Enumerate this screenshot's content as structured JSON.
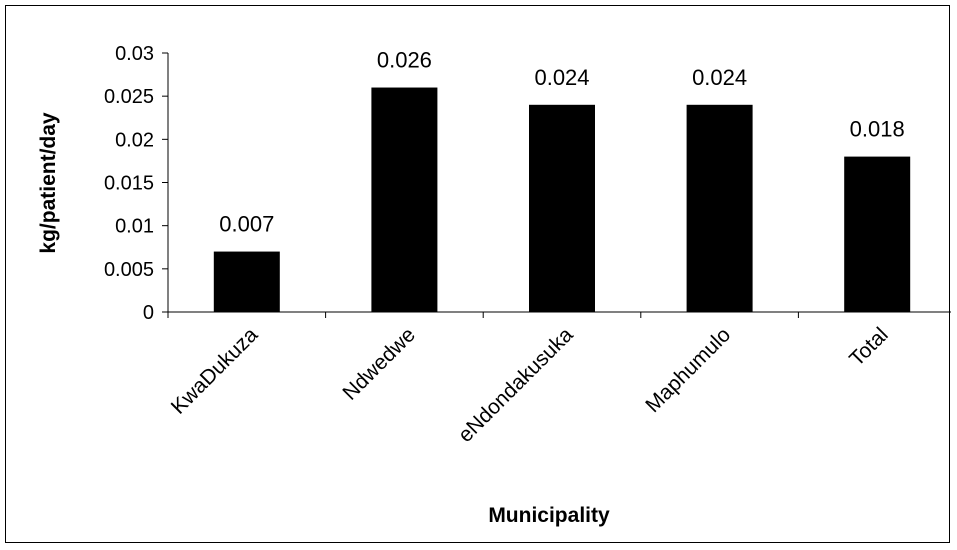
{
  "chart_data": {
    "type": "bar",
    "categories": [
      "KwaDukuza",
      "Ndwedwe",
      "eNdondakusuka",
      "Maphumulo",
      "Total"
    ],
    "values": [
      0.007,
      0.026,
      0.024,
      0.024,
      0.018
    ],
    "data_labels": [
      "0.007",
      "0.026",
      "0.024",
      "0.024",
      "0.018"
    ],
    "xlabel": "Municipality",
    "ylabel": "kg/patient/day",
    "ylim": [
      0,
      0.03
    ],
    "yticks": [
      0,
      0.005,
      0.01,
      0.015,
      0.02,
      0.025,
      0.03
    ],
    "ytick_labels": [
      "0",
      "0.005",
      "0.01",
      "0.015",
      "0.02",
      "0.025",
      "0.03"
    ],
    "bar_color": "#000000",
    "grid": false,
    "legend": false
  }
}
